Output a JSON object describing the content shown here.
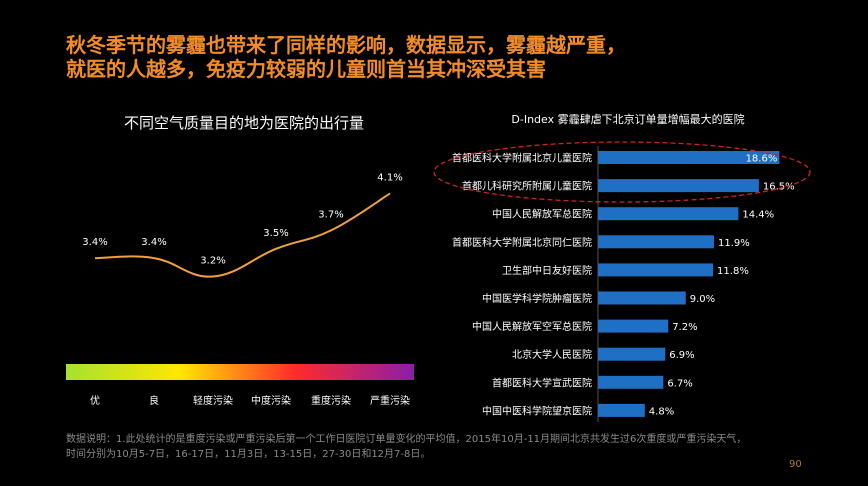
{
  "headline": {
    "line1": "秋冬季节的雾霾也带来了同样的影响，数据显示，雾霾越严重，",
    "line2": "就医的人越多，免疫力较弱的儿童则首当其冲深受其害"
  },
  "colors": {
    "headline": "#f28c28",
    "line": "#f0a040",
    "bar": "#1f6fc4",
    "highlight_ellipse": "#cc2222",
    "gradient": [
      "#a6e22e",
      "#ffe600",
      "#ff2a2a",
      "#8b1ea8"
    ]
  },
  "chart_data": [
    {
      "type": "line",
      "title": "不同空气质量目的地为医院的出行量",
      "categories": [
        "优",
        "良",
        "轻度污染",
        "中度污染",
        "重度污染",
        "严重污染"
      ],
      "values": [
        3.4,
        3.4,
        3.2,
        3.5,
        3.7,
        4.1
      ],
      "value_labels": [
        "3.4%",
        "3.4%",
        "3.2%",
        "3.5%",
        "3.7%",
        "4.1%"
      ],
      "ylim": [
        3.0,
        4.3
      ],
      "grid": false,
      "legend": "none"
    },
    {
      "type": "bar",
      "orientation": "horizontal",
      "title": "D-Index 雾霾肆虐下北京订单量增幅最大的医院",
      "categories": [
        "首都医科大学附属北京儿童医院",
        "首都儿科研究所附属儿童医院",
        "中国人民解放军总医院",
        "首都医科大学附属北京同仁医院",
        "卫生部中日友好医院",
        "中国医学科学院肿瘤医院",
        "中国人民解放军空军总医院",
        "北京大学人民医院",
        "首都医科大学宣武医院",
        "中国中医科学院望京医院"
      ],
      "values": [
        18.6,
        16.5,
        14.4,
        11.9,
        11.8,
        9.0,
        7.2,
        6.9,
        6.7,
        4.8
      ],
      "value_labels": [
        "18.6%",
        "16.5%",
        "14.4%",
        "11.9%",
        "11.8%",
        "9.0%",
        "7.2%",
        "6.9%",
        "6.7%",
        "4.8%"
      ],
      "xlim": [
        0,
        20
      ],
      "highlighted": [
        0,
        1
      ],
      "grid": false,
      "legend": "none"
    }
  ],
  "footer": {
    "note_line1": "数据说明：1.此处统计的是重度污染或严重污染后第一个工作日医院订单量变化的平均值，2015年10月-11月期间北京共发生过6次重度或严重污染天气，",
    "note_line2": "时间分别为10月5-7日，16-17日，11月3日，13-15日，27-30日和12月7-8日。",
    "page_number": "90"
  }
}
